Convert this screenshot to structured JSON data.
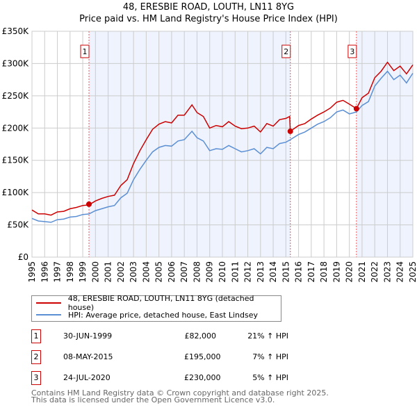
{
  "chart_data": {
    "type": "line",
    "title": "48, ERESBIE ROAD, LOUTH, LN11 8YG",
    "subtitle": "Price paid vs. HM Land Registry's House Price Index (HPI)",
    "xlim": [
      1995,
      2025
    ],
    "ylim": [
      0,
      350000
    ],
    "y_ticks": [
      {
        "v": 0,
        "label": "£0"
      },
      {
        "v": 50000,
        "label": "£50K"
      },
      {
        "v": 100000,
        "label": "£100K"
      },
      {
        "v": 150000,
        "label": "£150K"
      },
      {
        "v": 200000,
        "label": "£200K"
      },
      {
        "v": 250000,
        "label": "£250K"
      },
      {
        "v": 300000,
        "label": "£300K"
      },
      {
        "v": 350000,
        "label": "£350K"
      }
    ],
    "x_ticks": [
      "1995",
      "1996",
      "1997",
      "1998",
      "1999",
      "2000",
      "2001",
      "2002",
      "2003",
      "2004",
      "2005",
      "2006",
      "2007",
      "2008",
      "2009",
      "2010",
      "2011",
      "2012",
      "2013",
      "2014",
      "2015",
      "2016",
      "2017",
      "2018",
      "2019",
      "2020",
      "2021",
      "2022",
      "2023",
      "2024",
      "2025"
    ],
    "grid": true,
    "series": [
      {
        "name": "48, ERESBIE ROAD, LOUTH, LN11 8YG (detached house)",
        "color": "#cc0000",
        "x": [
          1995,
          1995.5,
          1996,
          1996.5,
          1997,
          1997.5,
          1998,
          1998.5,
          1999,
          1999.5,
          2000,
          2000.5,
          2001,
          2001.5,
          2002,
          2002.5,
          2003,
          2003.5,
          2004,
          2004.5,
          2005,
          2005.5,
          2006,
          2006.5,
          2007,
          2007.6,
          2008,
          2008.5,
          2009,
          2009.5,
          2010,
          2010.5,
          2011,
          2011.5,
          2012,
          2012.5,
          2013,
          2013.5,
          2014,
          2014.5,
          2015,
          2015.3,
          2015.35,
          2016,
          2016.5,
          2017,
          2017.5,
          2018,
          2018.5,
          2019,
          2019.5,
          2020,
          2020.56,
          2021,
          2021.5,
          2022,
          2022.5,
          2023,
          2023.5,
          2024,
          2024.5,
          2025
        ],
        "y": [
          73000,
          67000,
          67000,
          65000,
          70000,
          71000,
          75000,
          77000,
          80000,
          81000,
          87000,
          91000,
          94000,
          96000,
          111000,
          120000,
          145000,
          165000,
          182000,
          198000,
          206000,
          210000,
          208000,
          220000,
          220000,
          236000,
          224000,
          218000,
          200000,
          204000,
          202000,
          210000,
          203000,
          199000,
          200000,
          203000,
          194000,
          207000,
          203000,
          213000,
          215000,
          218000,
          195000,
          204000,
          207000,
          214000,
          220000,
          225000,
          231000,
          240000,
          243000,
          237000,
          230000,
          247000,
          254000,
          278000,
          288000,
          302000,
          289000,
          296000,
          284000,
          298000
        ]
      },
      {
        "name": "HPI: Average price, detached house, East Lindsey",
        "color": "#5b8fd4",
        "x": [
          1995,
          1995.5,
          1996,
          1996.5,
          1997,
          1997.5,
          1998,
          1998.5,
          1999,
          1999.5,
          2000,
          2000.5,
          2001,
          2001.5,
          2002,
          2002.5,
          2003,
          2003.5,
          2004,
          2004.5,
          2005,
          2005.5,
          2006,
          2006.5,
          2007,
          2007.6,
          2008,
          2008.5,
          2009,
          2009.5,
          2010,
          2010.5,
          2011,
          2011.5,
          2012,
          2012.5,
          2013,
          2013.5,
          2014,
          2014.5,
          2015,
          2015.35,
          2016,
          2016.5,
          2017,
          2017.5,
          2018,
          2018.5,
          2019,
          2019.5,
          2020,
          2020.56,
          2021,
          2021.5,
          2022,
          2022.5,
          2023,
          2023.5,
          2024,
          2024.5,
          2025
        ],
        "y": [
          60000,
          56000,
          55000,
          54000,
          58000,
          59000,
          62000,
          63000,
          66000,
          67000,
          72000,
          75000,
          78000,
          80000,
          92000,
          99000,
          120000,
          136000,
          150000,
          163000,
          170000,
          173000,
          172000,
          180000,
          182000,
          195000,
          185000,
          180000,
          165000,
          168000,
          167000,
          173000,
          168000,
          163000,
          165000,
          168000,
          160000,
          170000,
          168000,
          176000,
          178000,
          182000,
          190000,
          194000,
          200000,
          206000,
          210000,
          216000,
          225000,
          228000,
          222000,
          225000,
          235000,
          241000,
          265000,
          277000,
          288000,
          275000,
          282000,
          270000,
          285000
        ]
      }
    ],
    "sales": [
      {
        "label": "1",
        "x": 1999.49,
        "price": 82000,
        "date": "30-JUN-1999",
        "price_label": "£82,000",
        "hpi": "21% ↑ HPI"
      },
      {
        "label": "2",
        "x": 2015.35,
        "price": 195000,
        "date": "08-MAY-2015",
        "price_label": "£195,000",
        "hpi": "7% ↑ HPI"
      },
      {
        "label": "3",
        "x": 2020.56,
        "price": 230000,
        "date": "24-JUL-2020",
        "price_label": "£230,000",
        "hpi": "5% ↑ HPI"
      }
    ]
  },
  "legend": {
    "red": "48, ERESBIE ROAD, LOUTH, LN11 8YG (detached house)",
    "blue": "HPI: Average price, detached house, East Lindsey"
  },
  "footer": {
    "line1": "Contains HM Land Registry data © Crown copyright and database right 2025.",
    "line2": "This data is licensed under the Open Government Licence v3.0."
  }
}
